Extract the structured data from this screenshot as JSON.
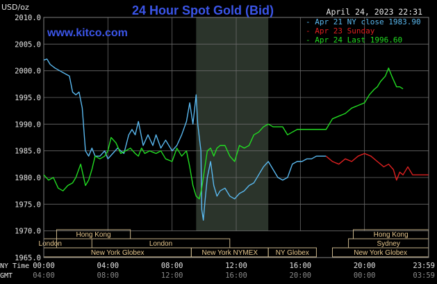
{
  "chart_data": {
    "type": "line",
    "title": "24 Hour Spot Gold (Bid)",
    "unit_label": "USD/oz",
    "timestamp": "April 24, 2023 22:31",
    "watermark": "www.kitco.com",
    "ylim": [
      1965.0,
      2010.0
    ],
    "y_ticks": [
      "2010.0",
      "2005.0",
      "2000.0",
      "1995.0",
      "1990.0",
      "1985.0",
      "1980.0",
      "1975.0",
      "1970.0",
      "1965.0"
    ],
    "xlim": [
      0,
      24
    ],
    "row_labels": [
      "NY Time",
      "GMT"
    ],
    "x_ticks_ny": [
      "00:00",
      "04:00",
      "08:00",
      "12:00",
      "16:00",
      "20:00",
      "23:59"
    ],
    "x_ticks_gmt": [
      "04:00",
      "08:00",
      "12:00",
      "16:00",
      "20:00",
      "00:00",
      "03:59"
    ],
    "highlight_band": [
      9.5,
      14.0
    ],
    "legend": [
      {
        "label": "Apr 21 NY close 1983.90",
        "color": "#5ab9f0"
      },
      {
        "label": "Apr 23 Sunday",
        "color": "#e02020"
      },
      {
        "label": "Apr 24 Last 1996.60",
        "color": "#22dd22"
      }
    ],
    "series": [
      {
        "name": "Apr 21",
        "color": "#5ab9f0",
        "x": [
          0,
          0.2,
          0.4,
          0.7,
          1.0,
          1.3,
          1.6,
          1.8,
          2.0,
          2.2,
          2.4,
          2.6,
          2.8,
          3.0,
          3.2,
          3.5,
          3.8,
          4.0,
          4.3,
          4.6,
          5.0,
          5.3,
          5.5,
          5.7,
          5.9,
          6.2,
          6.5,
          6.8,
          7.0,
          7.3,
          7.6,
          8.0,
          8.3,
          8.6,
          8.9,
          9.1,
          9.3,
          9.5,
          9.6,
          9.8,
          9.85,
          9.95,
          10.05,
          10.2,
          10.4,
          10.6,
          10.8,
          11.0,
          11.3,
          11.6,
          11.9,
          12.2,
          12.5,
          12.8,
          13.1,
          13.4,
          13.7,
          14.0,
          14.3,
          14.6,
          14.9,
          15.2,
          15.5,
          15.8,
          16.1,
          16.4,
          16.7,
          17.0,
          17.3,
          17.6
        ],
        "y": [
          2002,
          2002.2,
          2001.2,
          2000.5,
          2000,
          1999.5,
          1999,
          1996,
          1995.5,
          1996,
          1993,
          1985,
          1984,
          1985.5,
          1984,
          1984,
          1985,
          1983.5,
          1984.5,
          1985.5,
          1984.5,
          1988,
          1989,
          1988,
          1990.5,
          1986,
          1988,
          1986,
          1988,
          1985.5,
          1987,
          1985,
          1986,
          1988,
          1990.5,
          1994,
          1990,
          1995.5,
          1990,
          1985,
          1974,
          1972,
          1975.5,
          1980,
          1983,
          1978.5,
          1976.5,
          1977.5,
          1978,
          1976.5,
          1976,
          1977,
          1977.5,
          1978.5,
          1979,
          1980.5,
          1982,
          1983,
          1981.5,
          1980,
          1979.5,
          1980,
          1982.5,
          1983,
          1983,
          1983.5,
          1983.5,
          1984,
          1984,
          1984
        ]
      },
      {
        "name": "Apr 23",
        "color": "#e02020",
        "x": [
          17.6,
          18.0,
          18.4,
          18.8,
          19.2,
          19.6,
          20.0,
          20.4,
          20.8,
          21.2,
          21.5,
          21.8,
          22.0,
          22.2,
          22.4,
          22.7,
          23.0,
          23.3,
          23.6,
          23.99
        ],
        "y": [
          1984,
          1983,
          1982.5,
          1983.5,
          1983,
          1984,
          1984.5,
          1984,
          1983,
          1982,
          1982.5,
          1981.5,
          1979.5,
          1981,
          1980.5,
          1982,
          1980.5,
          1980.5,
          1980.5,
          1980.5
        ]
      },
      {
        "name": "Apr 24",
        "color": "#22dd22",
        "x": [
          0,
          0.3,
          0.6,
          0.9,
          1.2,
          1.5,
          1.8,
          2.0,
          2.3,
          2.6,
          2.8,
          3.0,
          3.2,
          3.5,
          3.8,
          4.0,
          4.2,
          4.5,
          4.8,
          5.1,
          5.4,
          5.7,
          5.9,
          6.1,
          6.3,
          6.6,
          7.0,
          7.3,
          7.6,
          8.0,
          8.3,
          8.6,
          8.9,
          9.1,
          9.3,
          9.5,
          9.7,
          9.85,
          10.0,
          10.2,
          10.4,
          10.6,
          10.8,
          11.0,
          11.3,
          11.6,
          11.9,
          12.2,
          12.5,
          12.8,
          13.1,
          13.4,
          13.7,
          14.0,
          14.3,
          14.6,
          14.9,
          15.2,
          15.5,
          15.8,
          16.1,
          16.4,
          16.7,
          17.0,
          17.3,
          17.6,
          18.0,
          18.4,
          18.8,
          19.2,
          19.6,
          20.0,
          20.3,
          20.6,
          20.8,
          21.0,
          21.3,
          21.5,
          21.7,
          22.0,
          22.2,
          22.4
        ],
        "y": [
          1980.5,
          1979.5,
          1980,
          1978,
          1977.5,
          1978.5,
          1979,
          1980,
          1982.5,
          1978.5,
          1979.5,
          1981.5,
          1984,
          1983.5,
          1984,
          1985,
          1987.5,
          1986.5,
          1984.5,
          1985,
          1985.5,
          1984.5,
          1984,
          1985.5,
          1984.5,
          1985,
          1984.5,
          1985,
          1983.5,
          1983,
          1985.5,
          1984,
          1985,
          1982,
          1978.5,
          1976.5,
          1976,
          1978,
          1981,
          1985,
          1985.5,
          1984,
          1985.5,
          1986,
          1986,
          1984,
          1983,
          1986,
          1985.5,
          1986,
          1988,
          1988.5,
          1989.5,
          1990,
          1989.5,
          1989.5,
          1989.5,
          1988,
          1988.5,
          1989,
          1989,
          1989,
          1989,
          1989,
          1989,
          1989,
          1991,
          1991.5,
          1992,
          1993,
          1993.5,
          1994,
          1995.5,
          1996.5,
          1997,
          1998,
          1999,
          2000.5,
          1999,
          1997,
          1997,
          1996.6
        ]
      }
    ],
    "market_sessions": [
      {
        "label": "Hong Kong",
        "start": 0.8,
        "end": 5.4,
        "row": 0
      },
      {
        "label": "Hong Kong",
        "start": 19.3,
        "end": 23.99,
        "row": 0
      },
      {
        "label": "London",
        "start": 0,
        "end": 0.8,
        "row": 1
      },
      {
        "label": "London",
        "start": 3.0,
        "end": 11.6,
        "row": 1
      },
      {
        "label": "Sydney",
        "start": 19.0,
        "end": 23.99,
        "row": 1
      },
      {
        "label": "New York Globex",
        "start": 0,
        "end": 9.2,
        "row": 2
      },
      {
        "label": "New York NYMEX",
        "start": 9.2,
        "end": 14.0,
        "row": 2
      },
      {
        "label": "NY Globex",
        "start": 14.0,
        "end": 17.0,
        "row": 2
      },
      {
        "label": "New York Globex",
        "start": 18.0,
        "end": 23.99,
        "row": 2
      }
    ]
  }
}
